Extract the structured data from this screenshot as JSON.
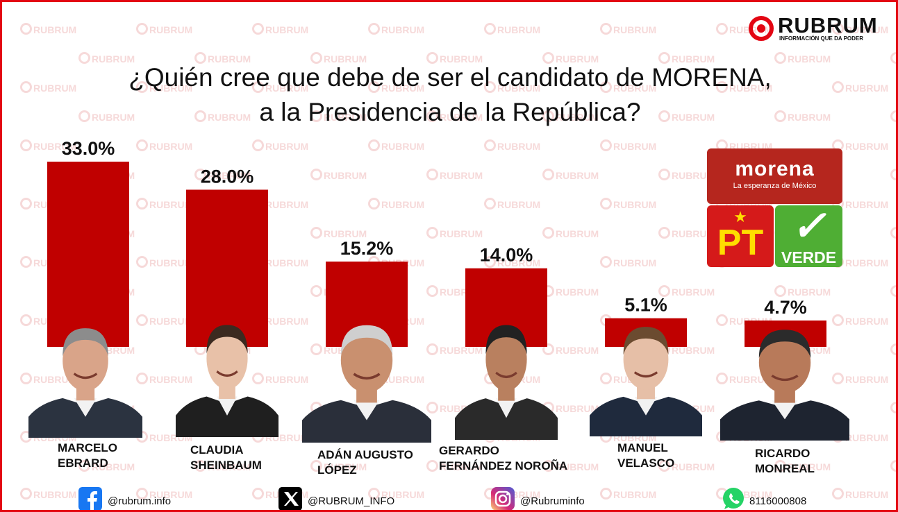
{
  "brand": {
    "name": "RUBRUM",
    "tagline": "INFORMACIÓN QUE DA PODER",
    "watermark": "RUBRUM",
    "accent_color": "#e30613",
    "bar_color": "#c00000"
  },
  "title_line1": "¿Quién cree que debe de ser el candidato de MORENA,",
  "title_line2": "a la Presidencia de la República?",
  "chart_data": {
    "type": "bar",
    "title": "¿Quién cree que debe de ser el candidato de MORENA, a la Presidencia de la República?",
    "categories": [
      "MARCELO EBRARD",
      "CLAUDIA SHEINBAUM",
      "ADÁN AUGUSTO LÓPEZ",
      "GERARDO FERNÁNDEZ NOROÑA",
      "MANUEL VELASCO",
      "RICARDO MONREAL"
    ],
    "values": [
      33.0,
      28.0,
      15.2,
      14.0,
      5.1,
      4.7
    ],
    "value_labels": [
      "33.0%",
      "28.0%",
      "15.2%",
      "14.0%",
      "5.1%",
      "4.7%"
    ],
    "unit": "%",
    "ylim": [
      0,
      33.0
    ],
    "grid": false,
    "legend": "none"
  },
  "candidates": [
    {
      "line1": "MARCELO",
      "line2": "EBRARD"
    },
    {
      "line1": "CLAUDIA",
      "line2": "SHEINBAUM"
    },
    {
      "line1": "ADÁN AUGUSTO",
      "line2": "LÓPEZ"
    },
    {
      "line1": "GERARDO",
      "line2": "FERNÁNDEZ NOROÑA"
    },
    {
      "line1": "MANUEL",
      "line2": "VELASCO"
    },
    {
      "line1": "RICARDO",
      "line2": "MONREAL"
    }
  ],
  "parties": {
    "morena_name": "morena",
    "morena_slogan": "La esperanza de México",
    "pt_name": "PT",
    "verde_name": "VERDE",
    "morena_color": "#b5261e",
    "pt_color": "#d51a1a",
    "verde_color": "#4fae34"
  },
  "social": {
    "facebook": "@rubrum.info",
    "x": "@RUBRUM_INFO",
    "instagram": "@Rubruminfo",
    "whatsapp": "8116000808",
    "icons": [
      "facebook-icon",
      "x-icon",
      "instagram-icon",
      "whatsapp-icon"
    ]
  }
}
